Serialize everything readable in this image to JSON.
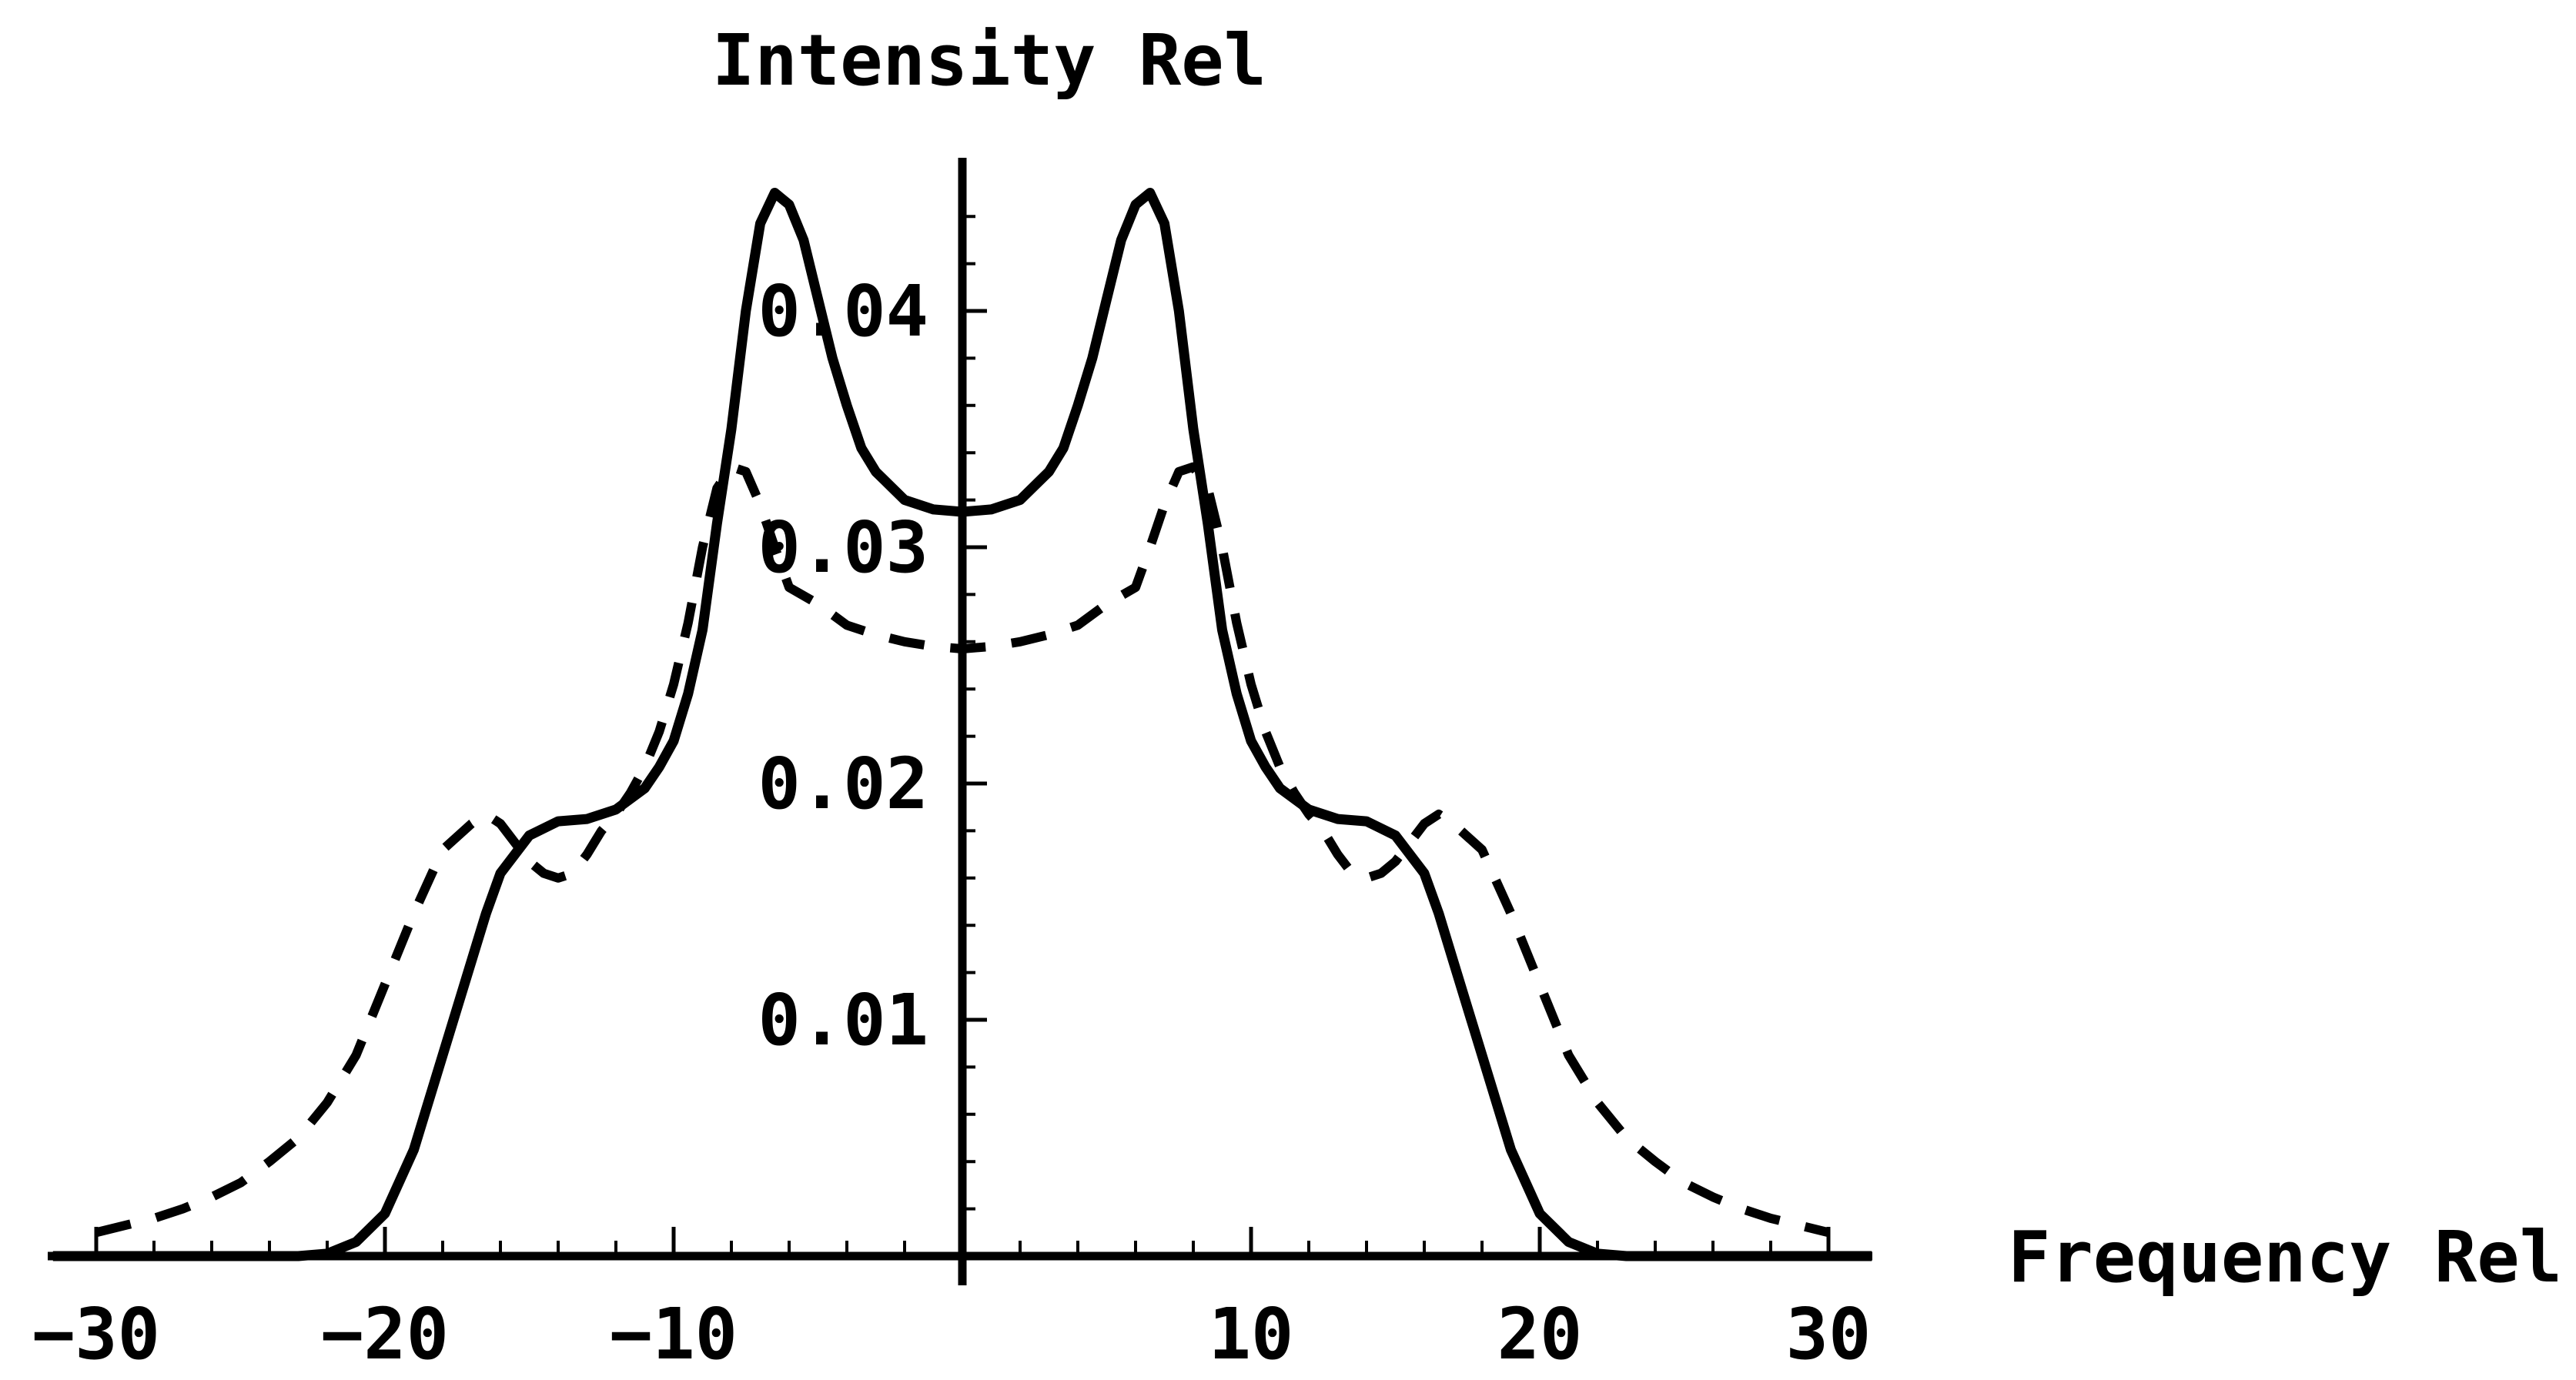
{
  "chart_data": {
    "type": "line",
    "title": "",
    "xlabel": "Frequency Rel",
    "ylabel": "Intensity Rel",
    "xlim": [
      -30,
      30
    ],
    "ylim": [
      0,
      0.0455
    ],
    "x_ticks": [
      -30,
      -20,
      -10,
      10,
      20,
      30
    ],
    "x_tick_labels": [
      "-30",
      "-20",
      "-10",
      "10",
      "20",
      "30"
    ],
    "y_ticks": [
      0.01,
      0.02,
      0.03,
      0.04
    ],
    "y_tick_labels": [
      "0.01",
      "0.02",
      "0.03",
      "0.04"
    ],
    "grid": false,
    "legend": "none",
    "series": [
      {
        "style": "solid",
        "x": [
          -31.5,
          -23,
          -22,
          -21,
          -20,
          -19,
          -18,
          -17,
          -16.5,
          -16,
          -15,
          -14,
          -13,
          -12,
          -11,
          -10.5,
          -10,
          -9.5,
          -9,
          -8.5,
          -8,
          -7.5,
          -7,
          -6.5,
          -6,
          -5.5,
          -5,
          -4.5,
          -4,
          -3.5,
          -3,
          -2,
          -1,
          0,
          1,
          2,
          3,
          3.5,
          4,
          4.5,
          5,
          5.5,
          6,
          6.5,
          7,
          7.5,
          8,
          8.5,
          9,
          9.5,
          10,
          10.5,
          11,
          12,
          13,
          14,
          15,
          16,
          16.5,
          17,
          18,
          19,
          20,
          21,
          22,
          23,
          31.5
        ],
        "y": [
          0,
          0,
          0.0001,
          0.0006,
          0.0018,
          0.0045,
          0.0085,
          0.0125,
          0.0145,
          0.0162,
          0.0178,
          0.0184,
          0.0185,
          0.0189,
          0.0198,
          0.0207,
          0.0218,
          0.0238,
          0.0265,
          0.031,
          0.035,
          0.04,
          0.0437,
          0.045,
          0.0445,
          0.043,
          0.0405,
          0.038,
          0.036,
          0.0342,
          0.0332,
          0.032,
          0.0316,
          0.0315,
          0.0316,
          0.032,
          0.0332,
          0.0342,
          0.036,
          0.038,
          0.0405,
          0.043,
          0.0445,
          0.045,
          0.0437,
          0.04,
          0.035,
          0.031,
          0.0265,
          0.0238,
          0.0218,
          0.0207,
          0.0198,
          0.0189,
          0.0185,
          0.0184,
          0.0178,
          0.0162,
          0.0145,
          0.0125,
          0.0085,
          0.0045,
          0.0018,
          0.0006,
          0.0001,
          0,
          0
        ]
      },
      {
        "style": "dashed",
        "x": [
          -30,
          -29,
          -28,
          -27,
          -26,
          -25,
          -24,
          -23,
          -22,
          -21,
          -20,
          -19,
          -18,
          -17,
          -16.5,
          -16,
          -15.5,
          -15,
          -14.5,
          -14,
          -13.5,
          -13,
          -12.5,
          -12,
          -11.5,
          -11,
          -10.5,
          -10,
          -9.5,
          -9,
          -8.5,
          -8,
          -7.5,
          -7,
          -6.5,
          -6,
          -5,
          -4,
          -3,
          -2,
          -1,
          0,
          1,
          2,
          3,
          4,
          5,
          6,
          6.5,
          7,
          7.5,
          8,
          8.5,
          9,
          9.5,
          10,
          10.5,
          11,
          11.5,
          12,
          12.5,
          13,
          13.5,
          14,
          14.5,
          15,
          15.5,
          16,
          16.5,
          17,
          18,
          19,
          20,
          21,
          22,
          23,
          24,
          25,
          26,
          27,
          28,
          29,
          30
        ],
        "y": [
          0.001,
          0.0013,
          0.0016,
          0.002,
          0.0025,
          0.0031,
          0.004,
          0.005,
          0.0065,
          0.0085,
          0.0115,
          0.0145,
          0.0172,
          0.0183,
          0.0187,
          0.0183,
          0.0175,
          0.0167,
          0.0162,
          0.016,
          0.0162,
          0.017,
          0.018,
          0.0187,
          0.0196,
          0.0207,
          0.0222,
          0.0242,
          0.0268,
          0.03,
          0.0325,
          0.0334,
          0.0332,
          0.0318,
          0.03,
          0.0283,
          0.0276,
          0.0267,
          0.0263,
          0.026,
          0.0258,
          0.0257,
          0.0258,
          0.026,
          0.0263,
          0.0267,
          0.0276,
          0.0283,
          0.03,
          0.0318,
          0.0332,
          0.0334,
          0.0325,
          0.03,
          0.0268,
          0.0242,
          0.0222,
          0.0207,
          0.0196,
          0.0187,
          0.018,
          0.017,
          0.0162,
          0.016,
          0.0162,
          0.0167,
          0.0175,
          0.0183,
          0.0187,
          0.0183,
          0.0172,
          0.0145,
          0.0115,
          0.0085,
          0.0065,
          0.005,
          0.004,
          0.0031,
          0.0025,
          0.002,
          0.0016,
          0.0013,
          0.001
        ]
      }
    ]
  }
}
